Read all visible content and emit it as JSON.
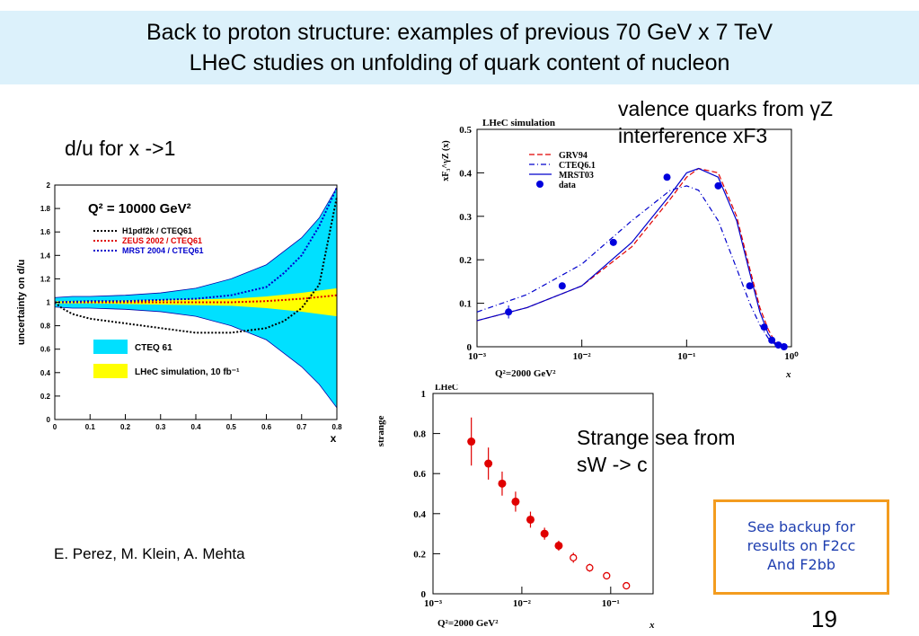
{
  "slide": {
    "title_line1": "Back to proton structure:  examples of  previous 70 GeV x 7 TeV",
    "title_line2": "LHeC studies on unfolding of quark content of nucleon",
    "caption_du": "d/u for x ->1",
    "caption_valence_1": "valence quarks from γZ",
    "caption_valence_2": "interference  xF3",
    "caption_strange_1": "Strange sea from",
    "caption_strange_2": "sW -> c",
    "authors": "E. Perez, M. Klein, A. Mehta",
    "backup_line1": "See backup for",
    "backup_line2": "results on F2cc",
    "backup_line3": "And F2bb",
    "page_number": "19",
    "colors": {
      "title_bg": "#dcf1fb",
      "backup_border": "#f39c1f",
      "backup_text": "#1f3fb0",
      "cteq_band": "#00e0ff",
      "lhec_band": "#ffff00"
    }
  },
  "chart_data": [
    {
      "type": "area",
      "title": "Q² = 10000 GeV²",
      "ylabel": "uncertainty on d/u",
      "xlabel": "x",
      "xlim": [
        0,
        0.8
      ],
      "ylim": [
        0,
        2
      ],
      "x_ticks": [
        "0",
        "0.1",
        "0.2",
        "0.3",
        "0.4",
        "0.5",
        "0.6",
        "0.7",
        "0.8"
      ],
      "y_ticks": [
        "0",
        "0.2",
        "0.4",
        "0.6",
        "0.8",
        "1",
        "1.2",
        "1.4",
        "1.6",
        "1.8",
        "2"
      ],
      "legend": [
        {
          "name": "H1pdf2k / CTEQ61",
          "color": "#000000",
          "style": "dotted"
        },
        {
          "name": "ZEUS 2002 / CTEQ61",
          "color": "#e00000",
          "style": "dotted"
        },
        {
          "name": "MRST 2004 / CTEQ61",
          "color": "#0000cc",
          "style": "dotted"
        }
      ],
      "bands": [
        {
          "name": "CTEQ 61",
          "color": "#00e0ff",
          "x": [
            0,
            0.05,
            0.1,
            0.2,
            0.3,
            0.4,
            0.5,
            0.6,
            0.7,
            0.75,
            0.8
          ],
          "upper": [
            1.04,
            1.05,
            1.05,
            1.06,
            1.08,
            1.12,
            1.2,
            1.32,
            1.55,
            1.72,
            1.98
          ],
          "lower": [
            0.96,
            0.95,
            0.95,
            0.94,
            0.92,
            0.88,
            0.8,
            0.68,
            0.45,
            0.3,
            0.1
          ]
        },
        {
          "name": "LHeC simulation, 10 fb⁻¹",
          "color": "#ffff00",
          "x": [
            0,
            0.1,
            0.2,
            0.3,
            0.4,
            0.5,
            0.6,
            0.7,
            0.8
          ],
          "upper": [
            1.01,
            1.01,
            1.015,
            1.02,
            1.025,
            1.03,
            1.05,
            1.08,
            1.12
          ],
          "lower": [
            0.99,
            0.99,
            0.985,
            0.98,
            0.975,
            0.97,
            0.95,
            0.92,
            0.88
          ]
        }
      ],
      "series": [
        {
          "name": "H1pdf2k / CTEQ61",
          "x": [
            0,
            0.02,
            0.05,
            0.1,
            0.2,
            0.3,
            0.4,
            0.5,
            0.6,
            0.65,
            0.7,
            0.75,
            0.8
          ],
          "y": [
            1.0,
            0.95,
            0.9,
            0.86,
            0.82,
            0.78,
            0.74,
            0.74,
            0.78,
            0.84,
            0.95,
            1.15,
            1.9
          ]
        },
        {
          "name": "ZEUS 2002 / CTEQ61",
          "x": [
            0,
            0.1,
            0.2,
            0.3,
            0.4,
            0.5,
            0.6,
            0.7,
            0.8
          ],
          "y": [
            1.0,
            1.0,
            1.0,
            1.0,
            1.0,
            1.0,
            1.01,
            1.03,
            1.06
          ]
        },
        {
          "name": "MRST 2004 / CTEQ61",
          "x": [
            0,
            0.1,
            0.2,
            0.3,
            0.4,
            0.5,
            0.6,
            0.65,
            0.7,
            0.75,
            0.8
          ],
          "y": [
            1.0,
            1.01,
            1.01,
            1.02,
            1.03,
            1.06,
            1.13,
            1.25,
            1.4,
            1.65,
            1.98
          ]
        }
      ]
    },
    {
      "type": "line",
      "label": "LHeC simulation",
      "ylabel": "xF₃^γZ (x)",
      "xlabel": "x",
      "annotation": "Q²=2000 GeV²",
      "log_x": true,
      "xlim": [
        0.001,
        1
      ],
      "ylim": [
        0,
        0.5
      ],
      "x_ticks": [
        "10⁻³",
        "10⁻²",
        "10⁻¹",
        "10⁰"
      ],
      "y_ticks": [
        "0",
        "0.1",
        "0.2",
        "0.3",
        "0.4",
        "0.5"
      ],
      "legend": [
        "GRV94",
        "CTEQ6.1",
        "MRST03",
        "data"
      ],
      "series": [
        {
          "name": "GRV94",
          "color": "#e00000",
          "style": "dashed",
          "x": [
            0.001,
            0.003,
            0.01,
            0.03,
            0.07,
            0.1,
            0.13,
            0.2,
            0.3,
            0.4,
            0.5,
            0.6,
            0.7,
            0.8
          ],
          "y": [
            0.06,
            0.09,
            0.14,
            0.23,
            0.34,
            0.39,
            0.41,
            0.4,
            0.3,
            0.18,
            0.09,
            0.04,
            0.01,
            0.0
          ]
        },
        {
          "name": "CTEQ6.1",
          "color": "#0000cc",
          "style": "dashdot",
          "x": [
            0.001,
            0.003,
            0.01,
            0.03,
            0.07,
            0.1,
            0.13,
            0.2,
            0.3,
            0.4,
            0.5,
            0.6,
            0.7,
            0.8
          ],
          "y": [
            0.08,
            0.12,
            0.19,
            0.29,
            0.36,
            0.37,
            0.36,
            0.29,
            0.18,
            0.1,
            0.05,
            0.02,
            0.005,
            0.0
          ]
        },
        {
          "name": "MRST03",
          "color": "#0000cc",
          "style": "solid",
          "x": [
            0.001,
            0.003,
            0.01,
            0.03,
            0.07,
            0.1,
            0.13,
            0.2,
            0.3,
            0.4,
            0.5,
            0.6,
            0.7,
            0.8
          ],
          "y": [
            0.06,
            0.09,
            0.14,
            0.24,
            0.35,
            0.4,
            0.41,
            0.39,
            0.29,
            0.17,
            0.08,
            0.03,
            0.008,
            0.0
          ]
        }
      ],
      "points": [
        {
          "name": "data",
          "x": [
            0.002,
            0.0065,
            0.02,
            0.065,
            0.2,
            0.4,
            0.55,
            0.65,
            0.75,
            0.85
          ],
          "y": [
            0.08,
            0.14,
            0.24,
            0.39,
            0.37,
            0.14,
            0.045,
            0.015,
            0.004,
            0.0
          ],
          "err": [
            0.015,
            0.008,
            0.006,
            0.005,
            0.005,
            0.006,
            0.004,
            0.003,
            0.002,
            0.001
          ]
        }
      ]
    },
    {
      "type": "scatter",
      "label": "LHeC",
      "ylabel": "strange",
      "xlabel": "x",
      "annotation": "Q²=2000 GeV²",
      "log_x": true,
      "xlim": [
        0.001,
        0.3
      ],
      "ylim": [
        0,
        1
      ],
      "x_ticks": [
        "10⁻³",
        "10⁻²",
        "10⁻¹"
      ],
      "y_ticks": [
        "0",
        "0.2",
        "0.4",
        "0.6",
        "0.8",
        "1"
      ],
      "points": [
        {
          "name": "filled",
          "x": [
            0.0027,
            0.0042,
            0.006,
            0.0085,
            0.0125,
            0.018,
            0.026
          ],
          "y": [
            0.76,
            0.65,
            0.55,
            0.46,
            0.37,
            0.3,
            0.24
          ],
          "err": [
            0.12,
            0.08,
            0.06,
            0.05,
            0.04,
            0.03,
            0.025
          ]
        },
        {
          "name": "open",
          "x": [
            0.038,
            0.058,
            0.09,
            0.15
          ],
          "y": [
            0.18,
            0.13,
            0.09,
            0.04
          ],
          "err": [
            0.025,
            0.02,
            0.015,
            0.01
          ]
        }
      ]
    }
  ]
}
